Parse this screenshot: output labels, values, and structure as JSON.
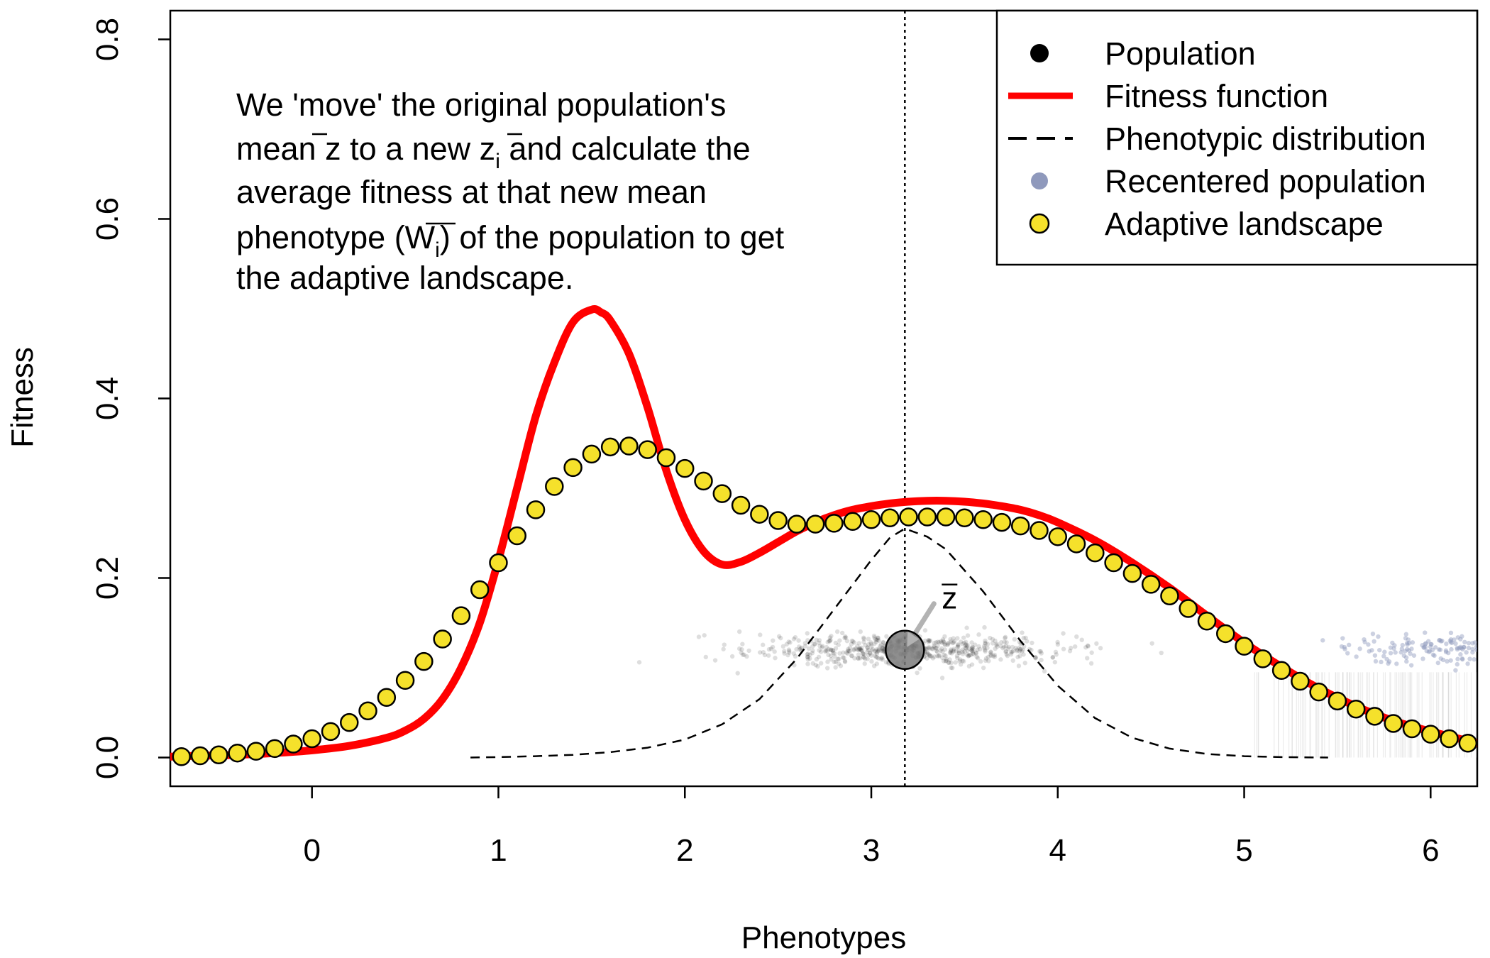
{
  "chart_data": {
    "type": "line",
    "title": "",
    "xlabel": "Phenotypes",
    "ylabel": "Fitness",
    "xlim": [
      -0.76,
      6.25
    ],
    "ylim": [
      -0.032,
      0.832
    ],
    "x_ticks": [
      0,
      1,
      2,
      3,
      4,
      5,
      6
    ],
    "x_tick_labels": [
      "0",
      "1",
      "2",
      "3",
      "4",
      "5",
      "6"
    ],
    "y_ticks": [
      0.0,
      0.2,
      0.4,
      0.6,
      0.8
    ],
    "y_tick_labels": [
      "0.0",
      "0.2",
      "0.4",
      "0.6",
      "0.8"
    ],
    "grid": false,
    "legend_position": "top-right",
    "legend": [
      {
        "label": "Population",
        "symbol": "point",
        "color": "#000000"
      },
      {
        "label": "Fitness function",
        "symbol": "line",
        "color": "#ff0000"
      },
      {
        "label": "Phenotypic distribution",
        "symbol": "dashed-line",
        "color": "#000000"
      },
      {
        "label": "Recentered population",
        "symbol": "point",
        "color": "#8f99bc"
      },
      {
        "label": "Adaptive landscape",
        "symbol": "point",
        "color": "#f5e12b"
      }
    ],
    "annotation": {
      "lines": [
        "We 'move' the original population's",
        "mean z to a new z",
        "average fitness at that new mean",
        "phenotype (W",
        "the adaptive landscape."
      ],
      "line2_tail": " and calculate the",
      "line4_tail": ") of the population to get",
      "subscript": "i"
    },
    "mean_marker": {
      "label": "z",
      "x": 3.18,
      "y": 0.12
    },
    "mean_line_x": 3.18,
    "fitness_function": {
      "name": "Fitness function",
      "color": "#ff0000",
      "x": [
        -0.76,
        -0.6,
        -0.4,
        -0.2,
        0.0,
        0.2,
        0.4,
        0.5,
        0.6,
        0.7,
        0.8,
        0.9,
        1.0,
        1.1,
        1.2,
        1.3,
        1.4,
        1.5,
        1.55,
        1.6,
        1.7,
        1.8,
        1.9,
        2.0,
        2.1,
        2.2,
        2.3,
        2.4,
        2.5,
        2.6,
        2.7,
        2.8,
        2.9,
        3.0,
        3.1,
        3.2,
        3.3,
        3.4,
        3.5,
        3.6,
        3.7,
        3.8,
        3.9,
        4.0,
        4.2,
        4.4,
        4.6,
        4.8,
        5.0,
        5.2,
        5.4,
        5.6,
        5.8,
        6.0,
        6.25
      ],
      "y": [
        0.001,
        0.002,
        0.003,
        0.005,
        0.008,
        0.013,
        0.022,
        0.03,
        0.043,
        0.065,
        0.1,
        0.15,
        0.22,
        0.3,
        0.38,
        0.44,
        0.485,
        0.499,
        0.496,
        0.487,
        0.45,
        0.39,
        0.32,
        0.265,
        0.23,
        0.215,
        0.218,
        0.228,
        0.24,
        0.252,
        0.262,
        0.27,
        0.276,
        0.28,
        0.283,
        0.285,
        0.286,
        0.286,
        0.285,
        0.283,
        0.28,
        0.276,
        0.27,
        0.262,
        0.242,
        0.217,
        0.189,
        0.158,
        0.128,
        0.101,
        0.077,
        0.057,
        0.041,
        0.029,
        0.016
      ]
    },
    "phenotypic_distribution": {
      "name": "Phenotypic distribution",
      "color": "#000000",
      "x": [
        0.85,
        1.0,
        1.2,
        1.4,
        1.6,
        1.8,
        2.0,
        2.2,
        2.4,
        2.6,
        2.8,
        3.0,
        3.1,
        3.18,
        3.3,
        3.4,
        3.6,
        3.8,
        4.0,
        4.2,
        4.4,
        4.6,
        4.8,
        5.0,
        5.2,
        5.45
      ],
      "y": [
        0.0,
        0.0005,
        0.0015,
        0.003,
        0.006,
        0.011,
        0.02,
        0.037,
        0.065,
        0.11,
        0.165,
        0.22,
        0.245,
        0.255,
        0.246,
        0.232,
        0.185,
        0.13,
        0.08,
        0.044,
        0.022,
        0.01,
        0.004,
        0.0015,
        0.0005,
        0.0
      ]
    },
    "adaptive_landscape": {
      "name": "Adaptive landscape",
      "color": "#f5e12b",
      "x": [
        -0.7,
        -0.6,
        -0.5,
        -0.4,
        -0.3,
        -0.2,
        -0.1,
        0.0,
        0.1,
        0.2,
        0.3,
        0.4,
        0.5,
        0.6,
        0.7,
        0.8,
        0.9,
        1.0,
        1.1,
        1.2,
        1.3,
        1.4,
        1.5,
        1.6,
        1.7,
        1.8,
        1.9,
        2.0,
        2.1,
        2.2,
        2.3,
        2.4,
        2.5,
        2.6,
        2.7,
        2.8,
        2.9,
        3.0,
        3.1,
        3.2,
        3.3,
        3.4,
        3.5,
        3.6,
        3.7,
        3.8,
        3.9,
        4.0,
        4.1,
        4.2,
        4.3,
        4.4,
        4.5,
        4.6,
        4.7,
        4.8,
        4.9,
        5.0,
        5.1,
        5.2,
        5.3,
        5.4,
        5.5,
        5.6,
        5.7,
        5.8,
        5.9,
        6.0,
        6.1,
        6.2
      ],
      "y": [
        0.001,
        0.002,
        0.003,
        0.005,
        0.007,
        0.01,
        0.015,
        0.021,
        0.029,
        0.039,
        0.052,
        0.067,
        0.086,
        0.107,
        0.132,
        0.158,
        0.187,
        0.217,
        0.247,
        0.276,
        0.302,
        0.323,
        0.338,
        0.346,
        0.347,
        0.343,
        0.334,
        0.322,
        0.308,
        0.294,
        0.281,
        0.271,
        0.264,
        0.26,
        0.26,
        0.261,
        0.263,
        0.265,
        0.267,
        0.268,
        0.268,
        0.268,
        0.267,
        0.265,
        0.262,
        0.258,
        0.253,
        0.246,
        0.238,
        0.228,
        0.217,
        0.205,
        0.193,
        0.18,
        0.166,
        0.152,
        0.138,
        0.124,
        0.11,
        0.097,
        0.085,
        0.073,
        0.063,
        0.054,
        0.046,
        0.038,
        0.032,
        0.026,
        0.021,
        0.016
      ]
    },
    "population": {
      "name": "Population",
      "color": "#000000",
      "x_range": [
        1.5,
        4.95
      ],
      "y_range": [
        0.095,
        0.15
      ],
      "n": 600
    },
    "recentered_population": {
      "name": "Recentered population",
      "color": "#8f99bc",
      "x_range": [
        5.25,
        6.25
      ],
      "y_range": [
        0.095,
        0.145
      ],
      "n": 220
    }
  }
}
